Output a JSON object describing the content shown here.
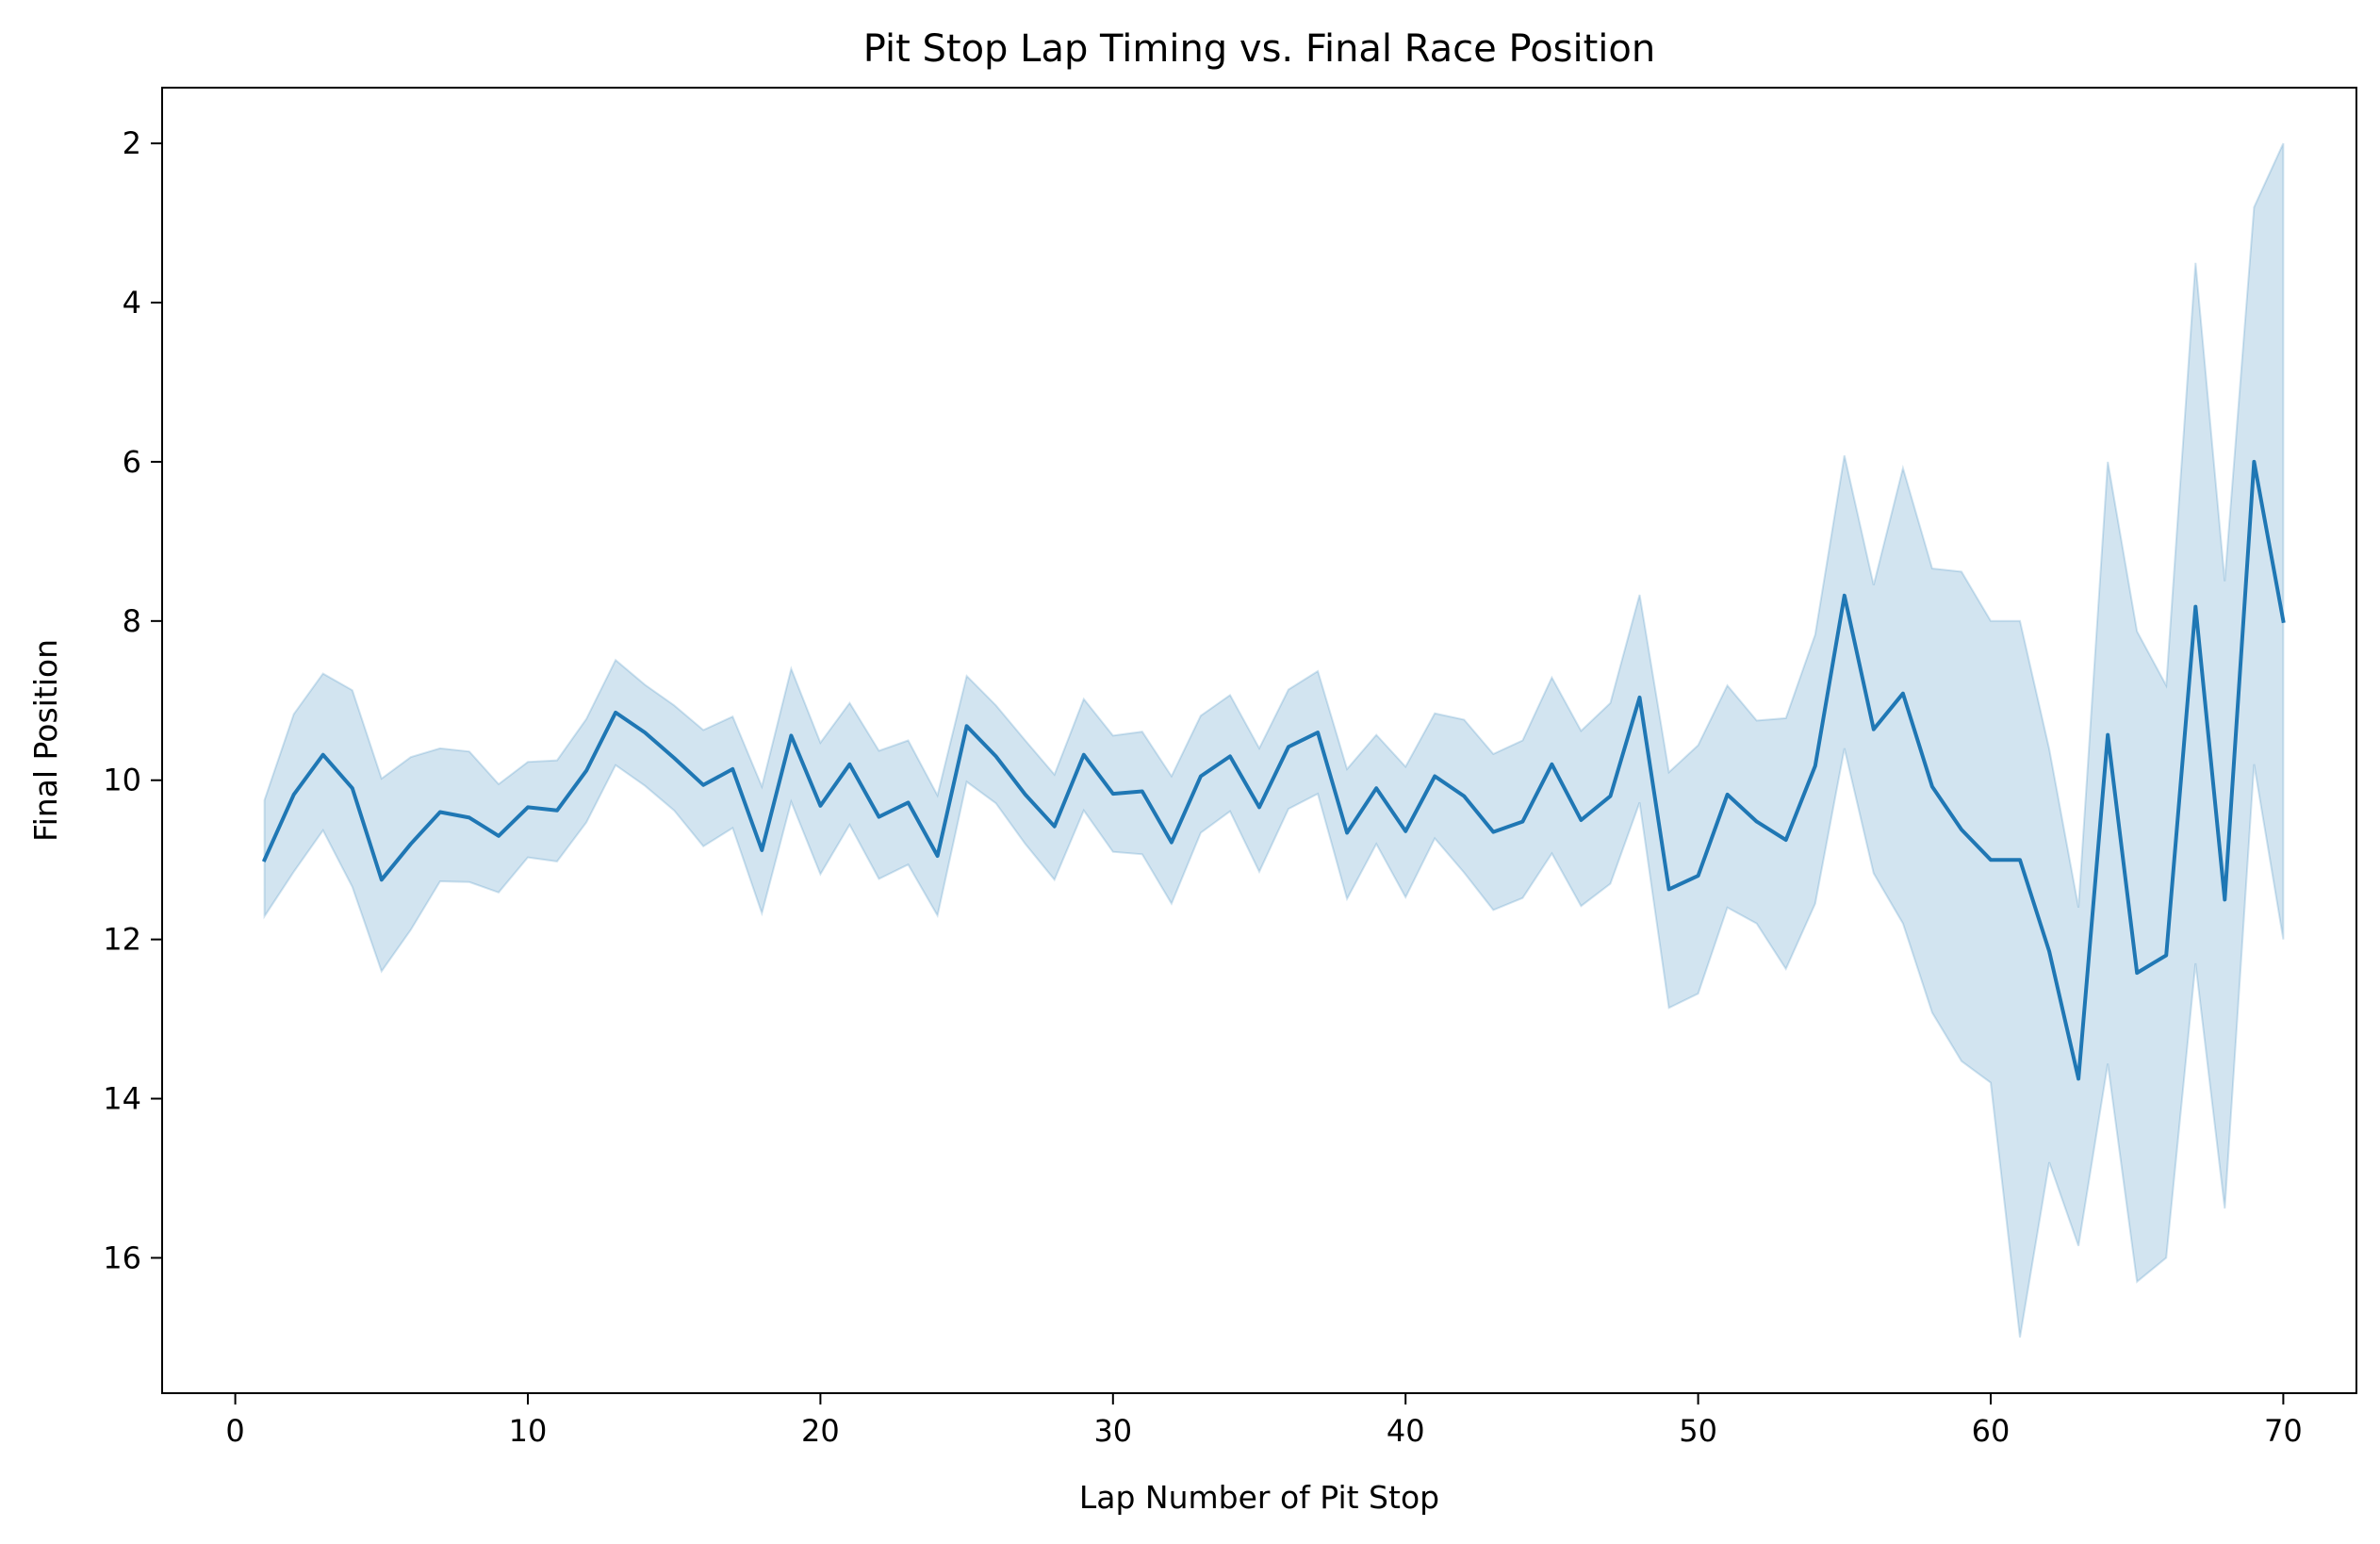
{
  "chart_data": {
    "type": "line",
    "title": "Pit Stop Lap Timing vs. Final Race Position",
    "xlabel": "Lap Number of Pit Stop",
    "ylabel": "Final Position",
    "xlim": [
      -2.5,
      72.5
    ],
    "ylim": [
      1.3,
      17.7
    ],
    "y_inverted": true,
    "xticks": [
      0,
      10,
      20,
      30,
      40,
      50,
      60,
      70
    ],
    "yticks": [
      2,
      4,
      6,
      8,
      10,
      12,
      14,
      16
    ],
    "grid": false,
    "legend": "none",
    "colors": {
      "line": "#1f77b4",
      "band": "#1f77b4",
      "band_opacity": 0.2
    },
    "x": [
      1,
      2,
      3,
      4,
      5,
      6,
      7,
      8,
      9,
      10,
      11,
      12,
      13,
      14,
      15,
      16,
      17,
      18,
      19,
      20,
      21,
      22,
      23,
      24,
      25,
      26,
      27,
      28,
      29,
      30,
      31,
      32,
      33,
      34,
      35,
      36,
      37,
      38,
      39,
      40,
      41,
      42,
      43,
      44,
      45,
      46,
      47,
      48,
      49,
      50,
      51,
      52,
      53,
      54,
      55,
      56,
      57,
      58,
      59,
      60,
      61,
      62,
      63,
      64,
      65,
      66,
      67,
      68,
      69,
      70
    ],
    "series": [
      {
        "values": [
          11.0,
          10.18,
          9.68,
          10.1,
          11.25,
          10.8,
          10.4,
          10.47,
          10.7,
          10.34,
          10.38,
          9.88,
          9.15,
          9.4,
          9.72,
          10.06,
          9.86,
          10.88,
          9.44,
          10.32,
          9.8,
          10.46,
          10.28,
          10.95,
          9.32,
          9.7,
          10.18,
          10.58,
          9.68,
          10.17,
          10.14,
          10.78,
          9.95,
          9.7,
          10.34,
          9.58,
          9.4,
          10.66,
          10.1,
          10.64,
          9.95,
          10.2,
          10.65,
          10.52,
          9.8,
          10.5,
          10.2,
          8.96,
          11.37,
          11.2,
          10.18,
          10.52,
          10.75,
          9.82,
          7.68,
          9.36,
          8.91,
          10.08,
          10.62,
          11.0,
          11.0,
          12.15,
          13.75,
          9.43,
          12.42,
          12.2,
          7.82,
          11.5,
          6.0,
          8.0
        ],
        "lower": [
          10.25,
          9.17,
          8.66,
          8.87,
          9.98,
          9.71,
          9.6,
          9.64,
          10.05,
          9.77,
          9.75,
          9.23,
          8.49,
          8.8,
          9.06,
          9.37,
          9.2,
          10.08,
          8.6,
          9.53,
          9.03,
          9.63,
          9.5,
          10.19,
          8.69,
          9.06,
          9.5,
          9.93,
          8.98,
          9.44,
          9.39,
          9.95,
          9.19,
          8.93,
          9.6,
          8.86,
          8.63,
          9.86,
          9.43,
          9.83,
          9.16,
          9.24,
          9.67,
          9.5,
          8.71,
          9.38,
          9.03,
          7.67,
          9.9,
          9.56,
          8.81,
          9.25,
          9.22,
          8.17,
          5.92,
          7.55,
          6.08,
          7.34,
          7.38,
          8.0,
          8.0,
          9.61,
          11.6,
          6.0,
          8.13,
          8.81,
          3.5,
          7.5,
          2.8,
          2.0
        ],
        "upper": [
          11.71,
          11.15,
          10.63,
          11.34,
          12.4,
          11.88,
          11.27,
          11.28,
          11.41,
          10.97,
          11.02,
          10.53,
          9.81,
          10.07,
          10.38,
          10.83,
          10.6,
          11.67,
          10.27,
          11.18,
          10.56,
          11.24,
          11.06,
          11.7,
          10.02,
          10.29,
          10.8,
          11.25,
          10.38,
          10.9,
          10.93,
          11.55,
          10.66,
          10.39,
          11.15,
          10.36,
          10.17,
          11.49,
          10.8,
          11.47,
          10.73,
          11.16,
          11.63,
          11.48,
          10.92,
          11.58,
          11.3,
          10.28,
          12.86,
          12.68,
          11.6,
          11.8,
          12.37,
          11.55,
          9.6,
          11.17,
          11.8,
          12.92,
          13.53,
          13.8,
          17.0,
          14.8,
          15.85,
          13.56,
          16.3,
          16.0,
          12.3,
          15.38,
          9.8,
          12.0
        ]
      }
    ]
  }
}
